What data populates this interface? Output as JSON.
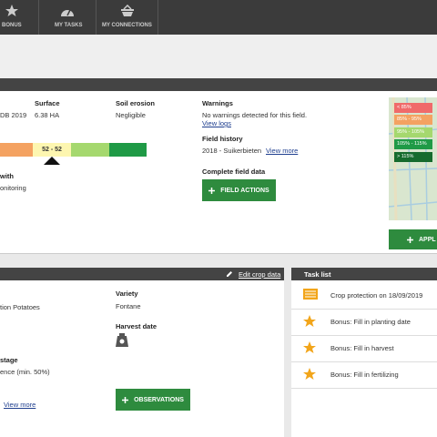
{
  "nav": {
    "items": [
      "BONUS",
      "MY TASKS",
      "MY CONNECTIONS"
    ]
  },
  "field": {
    "date_fragment": "DB 2019",
    "surface": {
      "label": "Surface",
      "value": "6.38 HA"
    },
    "soil_erosion": {
      "label": "Soil erosion",
      "value": "Negligible"
    },
    "warnings": {
      "label": "Warnings",
      "text": "No warnings detected for this field.",
      "link": "View logs"
    },
    "field_history": {
      "label": "Field history",
      "text": "2018 - Suikerbieten",
      "link": "View more"
    },
    "complete": {
      "label": "Complete field data",
      "button": "FIELD ACTIONS"
    },
    "scale_value": "52 - 52",
    "fragments": [
      "with",
      "onitoring"
    ]
  },
  "legend": [
    "< 85%",
    "85% - 95%",
    "95% - 105%",
    "105% - 115%",
    "> 115%"
  ],
  "apply_button": "APPL",
  "crop": {
    "header_link": "Edit crop data",
    "crop_fragment": "tion Potatoes",
    "variety": {
      "label": "Variety",
      "value": "Fontane"
    },
    "harvest_date": "Harvest date",
    "stage": {
      "label": "stage",
      "value": "ence (min. 50%)"
    },
    "link": "View more",
    "button": "OBSERVATIONS"
  },
  "tasks": {
    "title": "Task list",
    "items": [
      "Crop protection on 18/09/2019",
      "Bonus: Fill in planting date",
      "Bonus: Fill in harvest",
      "Bonus: Fill in fertilizing"
    ]
  }
}
